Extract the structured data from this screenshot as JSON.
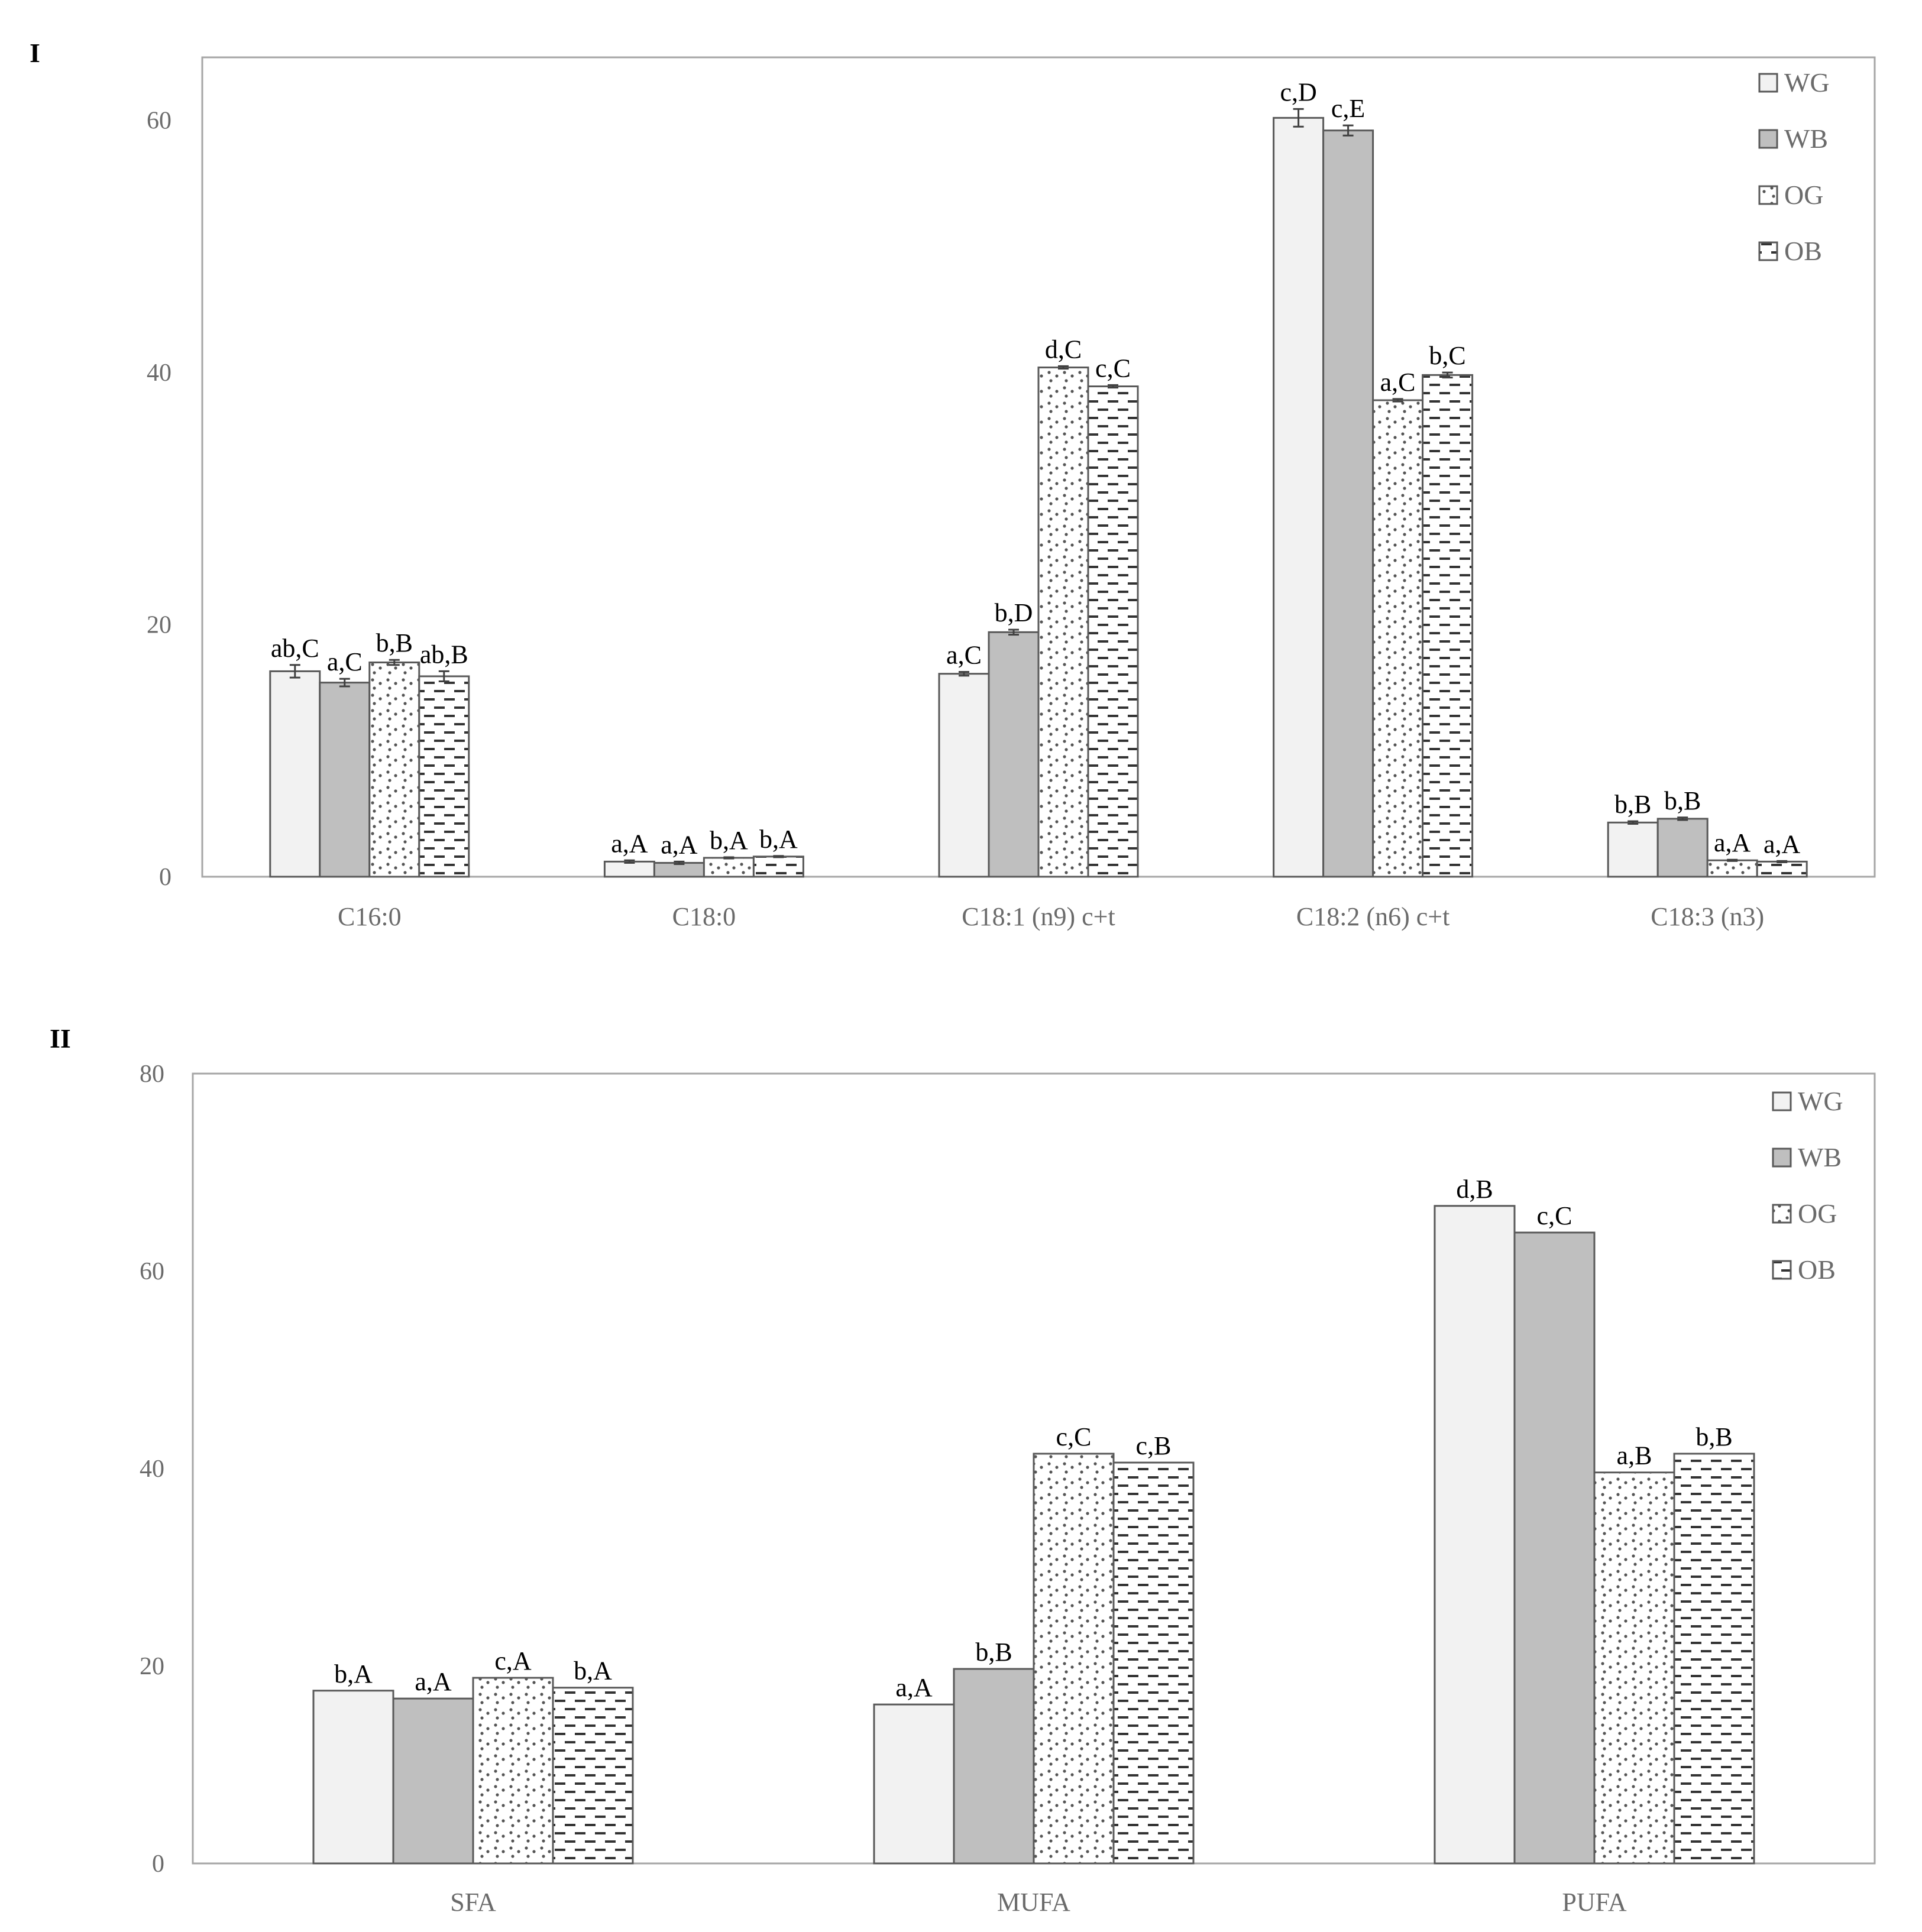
{
  "colors": {
    "WG": "#f2f2f2",
    "WB": "#bfbfbf",
    "OG": "#ffffff",
    "OB": "#ffffff",
    "frame": "#a6a6a6",
    "bar_stroke": "#595959",
    "text": "#6b6b6b"
  },
  "chart_data": [
    {
      "id": "I",
      "type": "bar",
      "panel_title": "I",
      "categories": [
        "C16:0",
        "C18:0",
        "C18:1 (n9) c+t",
        "C18:2 (n6) c+t",
        "C18:3 (n3)"
      ],
      "ylim": [
        0,
        65
      ],
      "yticks": [
        0,
        20,
        40,
        60
      ],
      "legend_position": "top-right",
      "grid": false,
      "error_bars": true,
      "series": [
        {
          "name": "WG",
          "pattern": "solid-light",
          "values": [
            16.3,
            1.2,
            16.1,
            60.2,
            4.3
          ],
          "errors": [
            0.5,
            0.1,
            0.15,
            0.7,
            0.1
          ],
          "labels": [
            "ab,C",
            "a,A",
            "a,C",
            "c,D",
            "b,B"
          ]
        },
        {
          "name": "WB",
          "pattern": "solid-gray",
          "values": [
            15.4,
            1.1,
            19.4,
            59.2,
            4.6
          ],
          "errors": [
            0.3,
            0.1,
            0.2,
            0.4,
            0.1
          ],
          "labels": [
            "a,C",
            "a,A",
            "b,D",
            "c,E",
            "b,B"
          ]
        },
        {
          "name": "OG",
          "pattern": "dots",
          "values": [
            17.0,
            1.5,
            40.4,
            37.8,
            1.3
          ],
          "errors": [
            0.2,
            0.05,
            0.1,
            0.1,
            0.05
          ],
          "labels": [
            "b,B",
            "b,A",
            "d,C",
            "a,C",
            "a,A"
          ]
        },
        {
          "name": "OB",
          "pattern": "dashes",
          "values": [
            15.9,
            1.6,
            38.9,
            39.8,
            1.2
          ],
          "errors": [
            0.4,
            0.05,
            0.1,
            0.2,
            0.05
          ],
          "labels": [
            "ab,B",
            "b,A",
            "c,C",
            "b,C",
            "a,A"
          ]
        }
      ]
    },
    {
      "id": "II",
      "type": "bar",
      "panel_title": "II",
      "categories": [
        "SFA",
        "MUFA",
        "PUFA"
      ],
      "ylim": [
        0,
        80
      ],
      "yticks": [
        0,
        20,
        40,
        60,
        80
      ],
      "legend_position": "top-right",
      "grid": false,
      "error_bars": false,
      "series": [
        {
          "name": "WG",
          "pattern": "solid-light",
          "values": [
            17.5,
            16.1,
            66.6
          ],
          "labels": [
            "b,A",
            "a,A",
            "d,B"
          ]
        },
        {
          "name": "WB",
          "pattern": "solid-gray",
          "values": [
            16.7,
            19.7,
            63.9
          ],
          "labels": [
            "a,A",
            "b,B",
            "c,C"
          ]
        },
        {
          "name": "OG",
          "pattern": "dots",
          "values": [
            18.8,
            41.5,
            39.6
          ],
          "labels": [
            "c,A",
            "c,C",
            "a,B"
          ]
        },
        {
          "name": "OB",
          "pattern": "dashes",
          "values": [
            17.8,
            40.6,
            41.5
          ],
          "labels": [
            "b,A",
            "c,B",
            "b,B"
          ]
        }
      ]
    }
  ]
}
